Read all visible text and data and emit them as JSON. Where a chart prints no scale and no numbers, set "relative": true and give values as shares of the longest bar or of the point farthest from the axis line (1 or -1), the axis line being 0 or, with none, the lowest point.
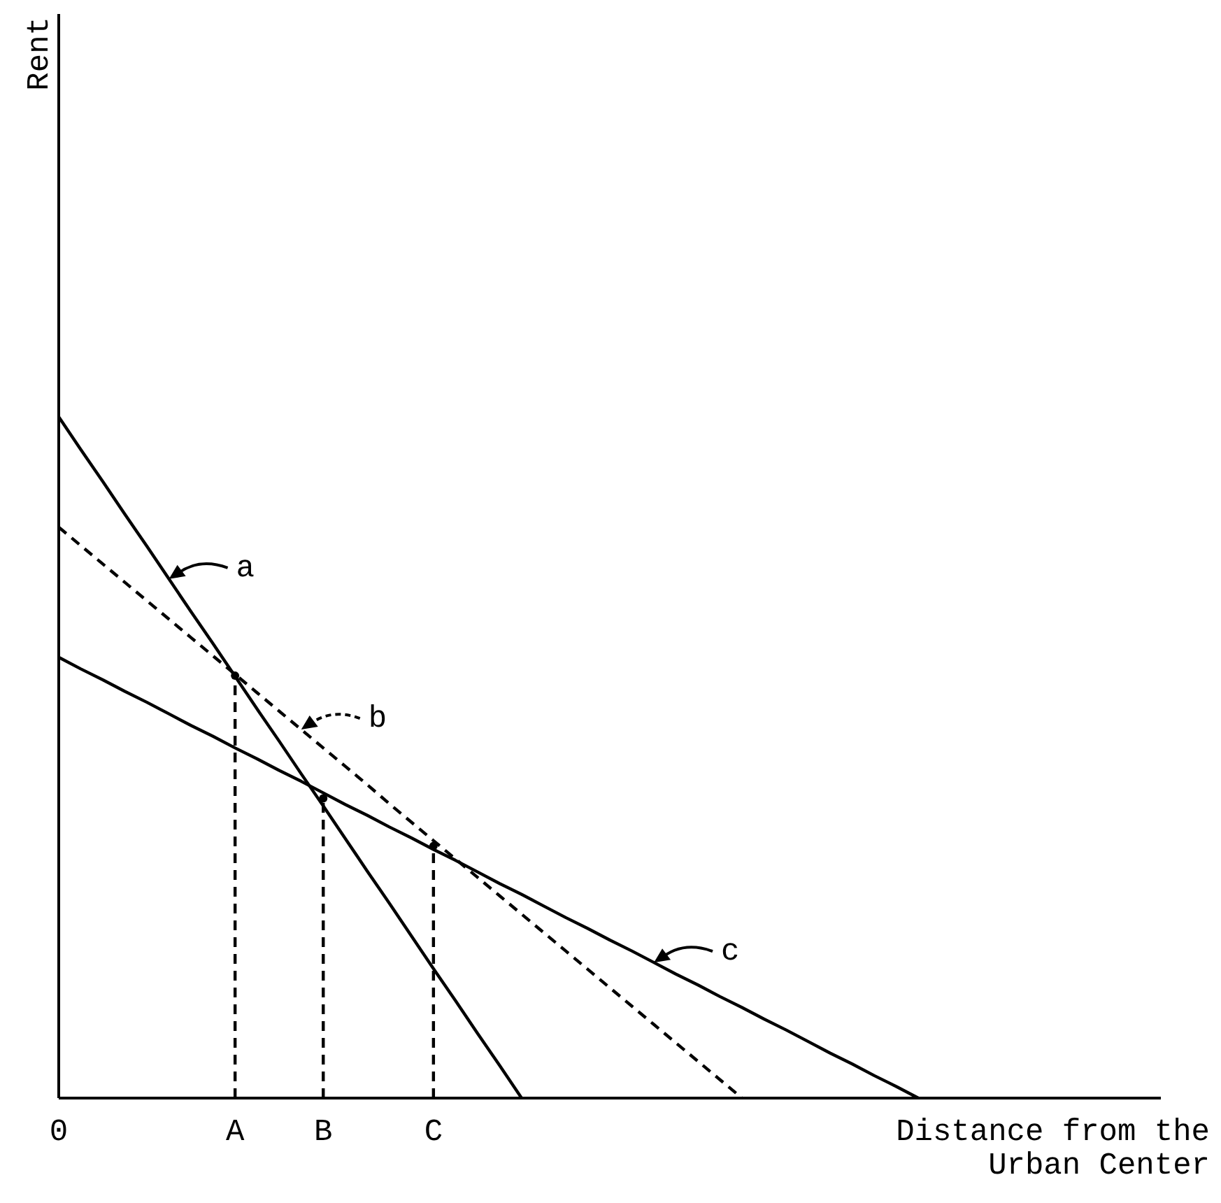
{
  "chart_data": {
    "type": "line",
    "relative": true,
    "annotations": [
      "Rent"
    ],
    "xlabel": "Distance from the Urban Center",
    "categories": [
      "0",
      null,
      null,
      null,
      null,
      null,
      null,
      null,
      "A",
      null,
      null,
      null,
      "B",
      null,
      null,
      null,
      null,
      "C",
      null,
      null,
      null,
      null,
      null,
      null,
      null,
      null,
      null,
      null,
      null,
      null,
      null,
      null,
      null,
      null,
      null,
      null,
      null,
      null,
      null,
      null,
      null,
      null,
      null,
      null,
      null,
      null,
      null,
      null,
      null,
      null,
      null
    ],
    "grid": false,
    "marker": "none",
    "legend": "center",
    "series": [
      {
        "name": "a",
        "color": "#000000",
        "line_style": "solid",
        "values": [
          1,
          0.952,
          0.905,
          0.857,
          0.81,
          0.762,
          0.714,
          0.667,
          0.619,
          0.571,
          0.524,
          0.476,
          0.429,
          0.381,
          0.333,
          0.286,
          0.238,
          0.19,
          0.143,
          0.095,
          0.048,
          0,
          null,
          null,
          null,
          null,
          null,
          null,
          null,
          null,
          null,
          null,
          null,
          null,
          null,
          null,
          null,
          null,
          null,
          null,
          null,
          null,
          null,
          null,
          null,
          null,
          null,
          null,
          null,
          null,
          null
        ]
      },
      {
        "name": "b",
        "color": "#000000",
        "line_style": "dashed",
        "values": [
          0.838,
          0.811,
          0.784,
          0.757,
          0.73,
          0.703,
          0.676,
          0.649,
          0.622,
          0.595,
          0.568,
          0.541,
          0.514,
          0.487,
          0.46,
          0.432,
          0.405,
          0.378,
          0.351,
          0.324,
          0.297,
          0.27,
          0.243,
          0.216,
          0.189,
          0.162,
          0.135,
          0.108,
          0.081,
          0.054,
          0.027,
          0,
          null,
          null,
          null,
          null,
          null,
          null,
          null,
          null,
          null,
          null,
          null,
          null,
          null,
          null,
          null,
          null,
          null,
          null,
          null
        ]
      },
      {
        "name": "c",
        "color": "#000000",
        "line_style": "solid",
        "values": [
          0.647,
          0.63,
          0.614,
          0.597,
          0.581,
          0.564,
          0.547,
          0.531,
          0.514,
          0.498,
          0.481,
          0.465,
          0.448,
          0.431,
          0.415,
          0.398,
          0.382,
          0.365,
          0.349,
          0.332,
          0.315,
          0.299,
          0.282,
          0.265,
          0.249,
          0.232,
          0.216,
          0.199,
          0.182,
          0.166,
          0.149,
          0.133,
          0.116,
          0.1,
          0.083,
          0.066,
          0.05,
          0.033,
          0.017,
          0,
          null,
          null,
          null,
          null,
          null,
          null,
          null,
          null,
          null,
          null,
          null
        ]
      },
      {
        "type": "lollipop",
        "color": "#000000",
        "line_style": "dashed",
        "marker": "circle",
        "values": [
          null,
          null,
          null,
          null,
          null,
          null,
          null,
          null,
          0.62,
          null,
          null,
          null,
          0.44,
          null,
          null,
          null,
          null,
          0.37,
          null,
          null,
          null,
          null,
          null,
          null,
          null,
          null,
          null,
          null,
          null,
          null,
          null,
          null,
          null,
          null,
          null,
          null,
          null,
          null,
          null,
          null,
          null,
          null,
          null,
          null,
          null,
          null,
          null,
          null,
          null,
          null,
          null
        ]
      }
    ]
  }
}
